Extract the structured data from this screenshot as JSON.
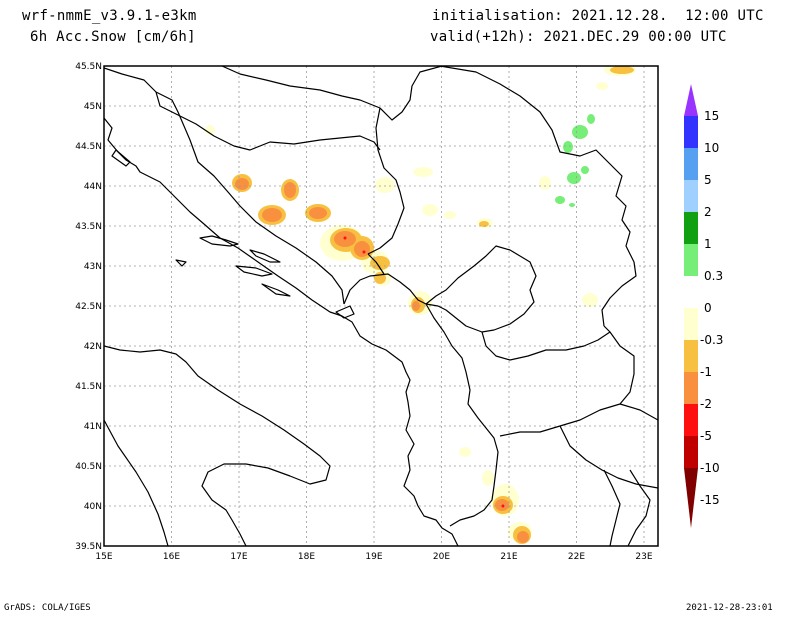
{
  "header": {
    "model": "wrf-nmmE_v3.9.1-e3km",
    "variable": "6h Acc.Snow [cm/6h]",
    "init": "initialisation: 2021.12.28.  12:00 UTC",
    "valid": "valid(+12h): 2021.DEC.29 00:00 UTC"
  },
  "footer": {
    "left": "GrADS: COLA/IGES",
    "right": "2021-12-28-23:01"
  },
  "map": {
    "lon_labels": [
      "15E",
      "16E",
      "17E",
      "18E",
      "19E",
      "20E",
      "21E",
      "22E",
      "23E"
    ],
    "lat_labels": [
      "45.5N",
      "45N",
      "44.5N",
      "44N",
      "43.5N",
      "43N",
      "42.5N",
      "42N",
      "41.5N",
      "41N",
      "40.5N",
      "40N",
      "39.5N"
    ]
  },
  "colorbar": {
    "labels": [
      "15",
      "10",
      "5",
      "2",
      "1",
      "0.3",
      "0",
      "-0.3",
      "-1",
      "-2",
      "-5",
      "-10",
      "-15"
    ],
    "colors": [
      "#9933ff",
      "#3333ff",
      "#55a0f0",
      "#a0d0ff",
      "#11a011",
      "#77ee77",
      "#ffffff",
      "#ffffd0",
      "#f8c040",
      "#f89040",
      "#ff1010",
      "#c00000",
      "#800000"
    ]
  }
}
